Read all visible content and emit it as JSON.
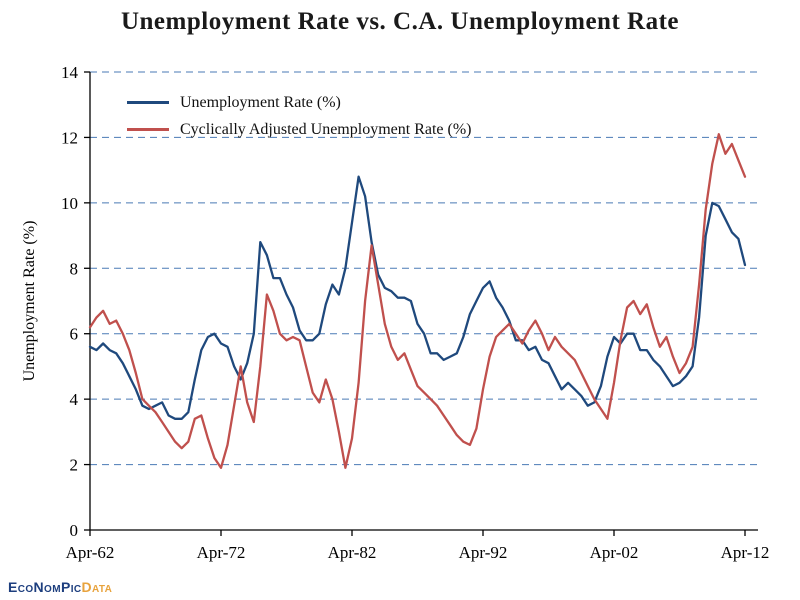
{
  "title": "Unemployment Rate vs. C.A. Unemployment Rate",
  "y_axis_label": "Unemployment Rate (%)",
  "legend": [
    {
      "label": "Unemployment Rate (%)",
      "color": "#1F497D"
    },
    {
      "label": "Cyclically Adjusted Unemployment Rate (%)",
      "color": "#C0504D"
    }
  ],
  "logo": {
    "main": "EcoNomPic",
    "accent": "Data",
    "main_color": "#1d3e7e",
    "accent_color": "#e8a33d"
  },
  "chart_data": {
    "type": "line",
    "title": "Unemployment Rate vs. C.A. Unemployment Rate",
    "xlabel": "",
    "ylabel": "Unemployment Rate (%)",
    "ylim": [
      0,
      14
    ],
    "yticks": [
      0,
      2,
      4,
      6,
      8,
      10,
      12,
      14
    ],
    "xticks": [
      {
        "label": "Apr-62",
        "year": 1962.25
      },
      {
        "label": "Apr-72",
        "year": 1972.25
      },
      {
        "label": "Apr-82",
        "year": 1982.25
      },
      {
        "label": "Apr-92",
        "year": 1992.25
      },
      {
        "label": "Apr-02",
        "year": 2002.25
      },
      {
        "label": "Apr-12",
        "year": 2012.25
      }
    ],
    "grid": "horizontal dashed",
    "grid_color": "#4a7ab5",
    "legend_position": "top-left inside",
    "x_unit": "decimal year (semiannual estimates read from plot)",
    "x": [
      1962.25,
      1962.75,
      1963.25,
      1963.75,
      1964.25,
      1964.75,
      1965.25,
      1965.75,
      1966.25,
      1966.75,
      1967.25,
      1967.75,
      1968.25,
      1968.75,
      1969.25,
      1969.75,
      1970.25,
      1970.75,
      1971.25,
      1971.75,
      1972.25,
      1972.75,
      1973.25,
      1973.75,
      1974.25,
      1974.75,
      1975.25,
      1975.75,
      1976.25,
      1976.75,
      1977.25,
      1977.75,
      1978.25,
      1978.75,
      1979.25,
      1979.75,
      1980.25,
      1980.75,
      1981.25,
      1981.75,
      1982.25,
      1982.75,
      1983.25,
      1983.75,
      1984.25,
      1984.75,
      1985.25,
      1985.75,
      1986.25,
      1986.75,
      1987.25,
      1987.75,
      1988.25,
      1988.75,
      1989.25,
      1989.75,
      1990.25,
      1990.75,
      1991.25,
      1991.75,
      1992.25,
      1992.75,
      1993.25,
      1993.75,
      1994.25,
      1994.75,
      1995.25,
      1995.75,
      1996.25,
      1996.75,
      1997.25,
      1997.75,
      1998.25,
      1998.75,
      1999.25,
      1999.75,
      2000.25,
      2000.75,
      2001.25,
      2001.75,
      2002.25,
      2002.75,
      2003.25,
      2003.75,
      2004.25,
      2004.75,
      2005.25,
      2005.75,
      2006.25,
      2006.75,
      2007.25,
      2007.75,
      2008.25,
      2008.75,
      2009.25,
      2009.75,
      2010.25,
      2010.75,
      2011.25,
      2011.75,
      2012.25
    ],
    "series": [
      {
        "name": "Unemployment Rate (%)",
        "color": "#1F497D",
        "values": [
          5.6,
          5.5,
          5.7,
          5.5,
          5.4,
          5.1,
          4.7,
          4.3,
          3.8,
          3.7,
          3.8,
          3.9,
          3.5,
          3.4,
          3.4,
          3.6,
          4.6,
          5.5,
          5.9,
          6.0,
          5.7,
          5.6,
          5.0,
          4.6,
          5.1,
          6.0,
          8.8,
          8.4,
          7.7,
          7.7,
          7.2,
          6.8,
          6.1,
          5.8,
          5.8,
          6.0,
          6.9,
          7.5,
          7.2,
          8.0,
          9.4,
          10.8,
          10.2,
          8.8,
          7.8,
          7.4,
          7.3,
          7.1,
          7.1,
          7.0,
          6.3,
          6.0,
          5.4,
          5.4,
          5.2,
          5.3,
          5.4,
          5.9,
          6.6,
          7.0,
          7.4,
          7.6,
          7.1,
          6.8,
          6.4,
          5.8,
          5.8,
          5.5,
          5.6,
          5.2,
          5.1,
          4.7,
          4.3,
          4.5,
          4.3,
          4.1,
          3.8,
          3.9,
          4.4,
          5.3,
          5.9,
          5.7,
          6.0,
          6.0,
          5.5,
          5.5,
          5.2,
          5.0,
          4.7,
          4.4,
          4.5,
          4.7,
          5.0,
          6.5,
          9.0,
          10.0,
          9.9,
          9.5,
          9.1,
          8.9,
          8.1
        ]
      },
      {
        "name": "Cyclically Adjusted Unemployment Rate (%)",
        "color": "#C0504D",
        "values": [
          6.2,
          6.5,
          6.7,
          6.3,
          6.4,
          6.0,
          5.5,
          4.8,
          4.0,
          3.8,
          3.6,
          3.3,
          3.0,
          2.7,
          2.5,
          2.7,
          3.4,
          3.5,
          2.8,
          2.2,
          1.9,
          2.6,
          3.8,
          5.0,
          3.9,
          3.3,
          5.0,
          7.2,
          6.7,
          6.0,
          5.8,
          5.9,
          5.8,
          5.0,
          4.2,
          3.9,
          4.6,
          4.0,
          3.0,
          1.9,
          2.8,
          4.5,
          7.0,
          8.7,
          7.5,
          6.3,
          5.6,
          5.2,
          5.4,
          4.9,
          4.4,
          4.2,
          4.0,
          3.8,
          3.5,
          3.2,
          2.9,
          2.7,
          2.6,
          3.1,
          4.3,
          5.3,
          5.9,
          6.1,
          6.3,
          6.0,
          5.7,
          6.1,
          6.4,
          6.0,
          5.5,
          5.9,
          5.6,
          5.4,
          5.2,
          4.8,
          4.4,
          4.0,
          3.7,
          3.4,
          4.5,
          5.8,
          6.8,
          7.0,
          6.6,
          6.9,
          6.2,
          5.6,
          5.9,
          5.3,
          4.8,
          5.1,
          5.6,
          7.5,
          9.8,
          11.2,
          12.1,
          11.5,
          11.8,
          11.3,
          10.8
        ]
      }
    ]
  }
}
